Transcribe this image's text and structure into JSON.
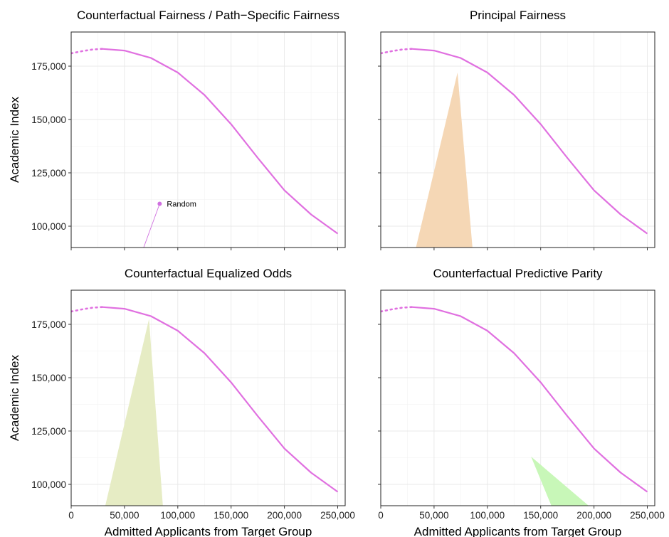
{
  "chart_data": {
    "type": "area",
    "shared": {
      "xlabel": "Admitted Applicants from Target Group",
      "ylabel": "Academic Index",
      "xlim": [
        0,
        257000
      ],
      "ylim": [
        90000,
        191000
      ],
      "x_ticks": [
        0,
        50000,
        100000,
        150000,
        200000,
        250000
      ],
      "x_tick_labels": [
        "0",
        "50,000",
        "100,000",
        "150,000",
        "200,000",
        "250,000"
      ],
      "y_ticks": [
        100000,
        125000,
        150000,
        175000
      ],
      "y_tick_labels": [
        "100,000",
        "125,000",
        "150,000",
        "175,000"
      ],
      "grid": true,
      "frontier_color": "#e070e0",
      "frontier": {
        "dotted_segment": [
          [
            0,
            181000
          ],
          [
            10000,
            182000
          ],
          [
            20000,
            182800
          ],
          [
            29000,
            183100
          ]
        ],
        "solid_segment": [
          [
            29000,
            183100
          ],
          [
            50000,
            182300
          ],
          [
            75000,
            178800
          ],
          [
            100000,
            172000
          ],
          [
            125000,
            161500
          ],
          [
            150000,
            147800
          ],
          [
            175000,
            132000
          ],
          [
            200000,
            116800
          ],
          [
            225000,
            105500
          ],
          [
            250000,
            96500
          ]
        ]
      }
    },
    "panels": [
      {
        "title": "Counterfactual Fairness / Path−Specific Fairness",
        "region": null,
        "annotations": [
          {
            "label": "Random",
            "x": 83000,
            "y": 110500,
            "line_to": [
              68000,
              90000
            ]
          }
        ]
      },
      {
        "title": "Principal Fairness",
        "region": {
          "color": "#f5d7b5",
          "polygon": [
            [
              72000,
              172000
            ],
            [
              86000,
              90000
            ],
            [
              33000,
              90000
            ]
          ]
        },
        "annotations": []
      },
      {
        "title": "Counterfactual Equalized Odds",
        "region": {
          "color": "#e6ecc4",
          "polygon": [
            [
              73000,
              177500
            ],
            [
              86000,
              90000
            ],
            [
              32000,
              90000
            ]
          ]
        },
        "annotations": []
      },
      {
        "title": "Counterfactual Predictive Parity",
        "region": {
          "color": "#c8f7b8",
          "polygon": [
            [
              141000,
              113000
            ],
            [
              195000,
              90000
            ],
            [
              160000,
              90000
            ]
          ]
        },
        "annotations": []
      }
    ]
  }
}
